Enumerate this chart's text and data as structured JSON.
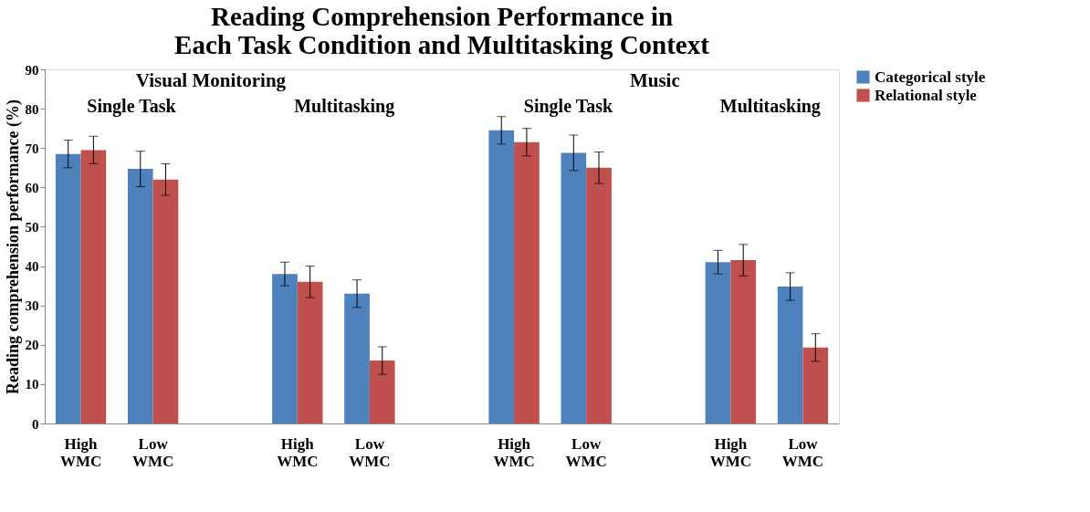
{
  "chart_data": {
    "type": "bar",
    "title": "Reading Comprehension Performance in Each Task Condition and Multitasking Context",
    "ylabel": "Reading comprehension performance  (%)",
    "categories": [
      "High WMC",
      "Low WMC",
      null,
      "High WMC",
      "Low WMC",
      null,
      "High WMC",
      "Low WMC",
      null,
      "High WMC",
      "Low WMC"
    ],
    "series": [
      {
        "name": "Categorical style",
        "color": "#4f81bd",
        "values": [
          68.5,
          64.7,
          null,
          38,
          33,
          null,
          74.5,
          68.8,
          null,
          41,
          34.8
        ],
        "errors": [
          3.5,
          4.5,
          null,
          3,
          3.5,
          null,
          3.5,
          4.5,
          null,
          3,
          3.5
        ]
      },
      {
        "name": "Relational style",
        "color": "#c0504d",
        "values": [
          69.5,
          62,
          null,
          36,
          16,
          null,
          71.5,
          65,
          null,
          41.5,
          19.3
        ],
        "errors": [
          3.5,
          4,
          null,
          4,
          3.5,
          null,
          3.5,
          4,
          null,
          4,
          3.5
        ]
      }
    ],
    "annotations": [
      "Visual Monitoring",
      "Single Task",
      "Multitasking",
      "Music",
      "Single Task",
      "Multitasking"
    ],
    "ylim": [
      0,
      90
    ],
    "yticks": [
      0,
      10,
      20,
      30,
      40,
      50,
      60,
      70,
      80,
      90
    ],
    "grid": false,
    "legend": "right"
  }
}
